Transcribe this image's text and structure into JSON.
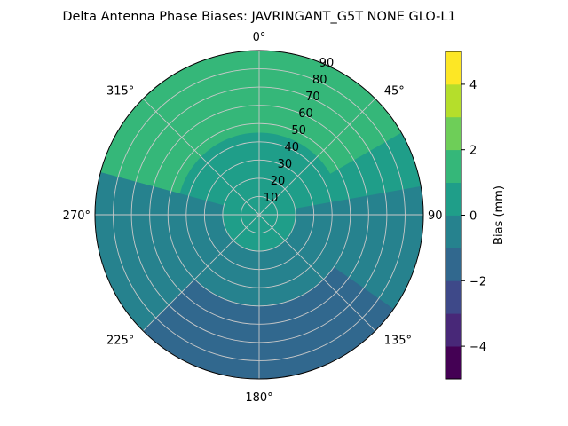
{
  "chart_data": {
    "type": "polar-contour",
    "title": "Delta Antenna Phase Biases: JAVRINGANT_G5T  NONE GLO-L1",
    "angular_ticks": [
      {
        "label": "0°",
        "deg": 0
      },
      {
        "label": "45°",
        "deg": 45
      },
      {
        "label": "90",
        "deg": 90
      },
      {
        "label": "135°",
        "deg": 135
      },
      {
        "label": "180°",
        "deg": 180
      },
      {
        "label": "225°",
        "deg": 225
      },
      {
        "label": "270°",
        "deg": 270
      },
      {
        "label": "315°",
        "deg": 315
      }
    ],
    "angular_direction": "clockwise",
    "angular_zero": "top",
    "radial_ticks": [
      10,
      20,
      30,
      40,
      50,
      60,
      70,
      80,
      90
    ],
    "rlim": [
      0,
      90
    ],
    "grid": true,
    "colorbar": {
      "label": "Bias (mm)",
      "levels": [
        -5,
        -4,
        -3,
        -2,
        -1,
        0,
        1,
        2,
        3,
        4,
        5
      ],
      "tick_labels": [
        "−4",
        "−2",
        "0",
        "2",
        "4"
      ],
      "tick_values": [
        -4,
        -2,
        0,
        2,
        4
      ],
      "colors": [
        "#440154",
        "#482878",
        "#3e4989",
        "#31688e",
        "#26828e",
        "#1f9e89",
        "#35b779",
        "#6ece58",
        "#b5de2b",
        "#fde725"
      ]
    },
    "regions": [
      {
        "level_range": [
          0,
          1
        ],
        "color": "#1f9e89",
        "extent_deg": [
          0,
          360
        ],
        "rlim": [
          0,
          90
        ]
      },
      {
        "level_range": [
          1,
          2
        ],
        "color": "#35b779",
        "extent_deg": [
          285,
          60
        ],
        "rlim": [
          45,
          90
        ]
      },
      {
        "level_range": [
          -1,
          0
        ],
        "color": "#26828e",
        "extent_deg": [
          80,
          285
        ],
        "rlim": [
          20,
          90
        ]
      },
      {
        "level_range": [
          -2,
          -1
        ],
        "color": "#31688e",
        "extent_deg": [
          125,
          225
        ],
        "rlim": [
          50,
          90
        ]
      }
    ]
  }
}
